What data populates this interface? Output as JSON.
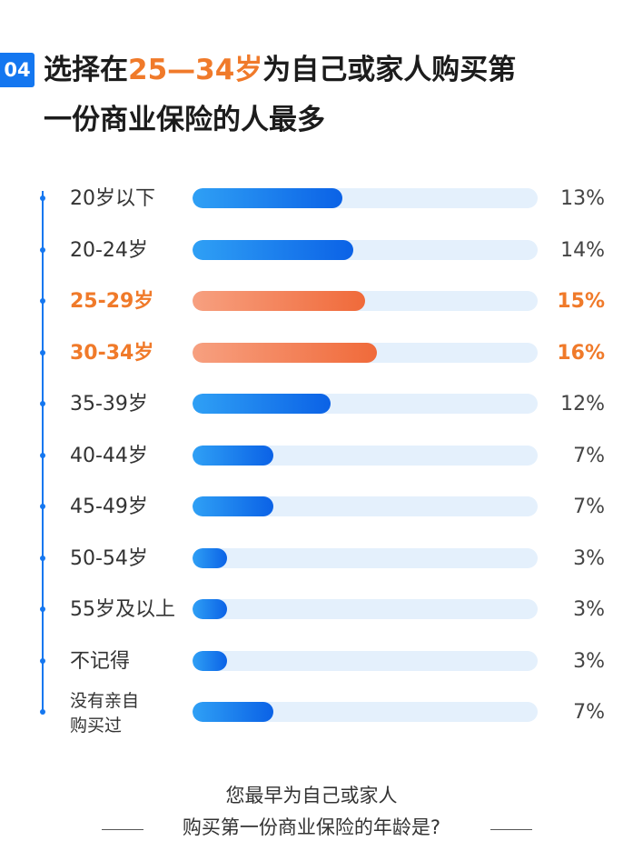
{
  "header": {
    "badge": "04",
    "title_part1": "选择在",
    "title_highlight": "25—34岁",
    "title_part2": "为自己或家人购买第",
    "title_line2": "一份商业保险的人最多"
  },
  "colors": {
    "accent_blue": "#1477f0",
    "highlight_orange": "#f07a2a",
    "track_bg": "#e4f0fc"
  },
  "chart_data": {
    "type": "bar",
    "orientation": "horizontal",
    "categories": [
      "20岁以下",
      "20-24岁",
      "25-29岁",
      "30-34岁",
      "35-39岁",
      "40-44岁",
      "45-49岁",
      "50-54岁",
      "55岁及以上",
      "不记得",
      "没有亲自购买过"
    ],
    "category_lines": [
      [
        "20岁以下"
      ],
      [
        "20-24岁"
      ],
      [
        "25-29岁"
      ],
      [
        "30-34岁"
      ],
      [
        "35-39岁"
      ],
      [
        "40-44岁"
      ],
      [
        "45-49岁"
      ],
      [
        "50-54岁"
      ],
      [
        "55岁及以上"
      ],
      [
        "不记得"
      ],
      [
        "没有亲自",
        "购买过"
      ]
    ],
    "values": [
      13,
      14,
      15,
      16,
      12,
      7,
      7,
      3,
      3,
      3,
      7
    ],
    "value_labels": [
      "13%",
      "14%",
      "15%",
      "16%",
      "12%",
      "7%",
      "7%",
      "3%",
      "3%",
      "3%",
      "7%"
    ],
    "highlighted": [
      false,
      false,
      true,
      true,
      false,
      false,
      false,
      false,
      false,
      false,
      false
    ],
    "unit": "%"
  },
  "caption": {
    "line1": "您最早为自己或家人",
    "line2": "购买第一份商业保险的年龄是?"
  }
}
